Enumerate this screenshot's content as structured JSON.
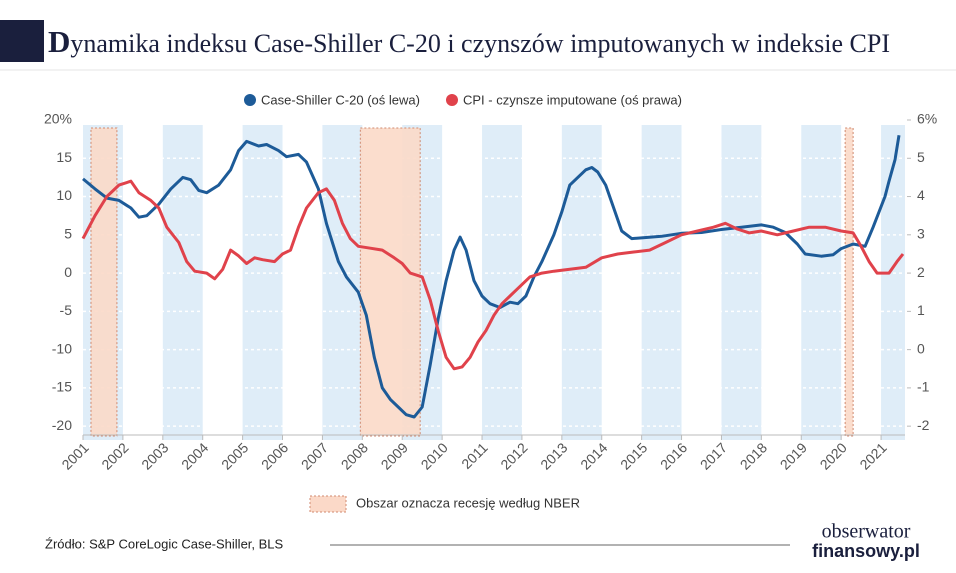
{
  "chart_data": {
    "type": "line",
    "title": "Dynamika indeksu Case-Shiller C-20 i czynszów imputowanych w indeksie CPI",
    "xlim": [
      2001,
      2021.6
    ],
    "xticks": [
      2001,
      2002,
      2003,
      2004,
      2005,
      2006,
      2007,
      2008,
      2009,
      2010,
      2011,
      2012,
      2013,
      2014,
      2015,
      2016,
      2017,
      2018,
      2019,
      2020,
      2021
    ],
    "ylim": [
      -20.5,
      20
    ],
    "yticks": [
      {
        "value": 20,
        "label": "20%"
      },
      15,
      10,
      5,
      0,
      -5,
      -10,
      -15,
      -20
    ],
    "y2lim": [
      -2.1,
      6
    ],
    "y2ticks": [
      {
        "value": 6,
        "label": "6%"
      },
      5,
      4,
      3,
      2,
      1,
      0,
      -1,
      -2
    ],
    "series": [
      {
        "name": "Case-Shiller C-20 (oś lewa)",
        "color": "#1d5b98",
        "axis": "y",
        "x": [
          2001.0,
          2001.3,
          2001.6,
          2001.9,
          2002.2,
          2002.4,
          2002.6,
          2002.9,
          2003.2,
          2003.5,
          2003.7,
          2003.9,
          2004.1,
          2004.4,
          2004.7,
          2004.9,
          2005.1,
          2005.4,
          2005.6,
          2005.9,
          2006.1,
          2006.4,
          2006.6,
          2006.9,
          2007.1,
          2007.4,
          2007.6,
          2007.9,
          2008.1,
          2008.3,
          2008.5,
          2008.7,
          2008.9,
          2009.1,
          2009.3,
          2009.5,
          2009.7,
          2009.9,
          2010.1,
          2010.3,
          2010.45,
          2010.6,
          2010.8,
          2011.0,
          2011.2,
          2011.45,
          2011.7,
          2011.9,
          2012.1,
          2012.3,
          2012.5,
          2012.8,
          2013.0,
          2013.2,
          2013.4,
          2013.6,
          2013.75,
          2013.9,
          2014.1,
          2014.3,
          2014.5,
          2014.75,
          2015.0,
          2015.5,
          2016.0,
          2016.5,
          2017.0,
          2017.5,
          2018.0,
          2018.3,
          2018.6,
          2018.9,
          2019.1,
          2019.5,
          2019.8,
          2020.0,
          2020.3,
          2020.6,
          2020.8,
          2021.1,
          2021.2,
          2021.35,
          2021.45
        ],
        "values": [
          12.3,
          11,
          9.8,
          9.5,
          8.5,
          7.3,
          7.5,
          9,
          11,
          12.5,
          12.2,
          10.8,
          10.5,
          11.5,
          13.5,
          16,
          17.2,
          16.6,
          16.8,
          16,
          15.2,
          15.5,
          14.5,
          11,
          6.5,
          1.5,
          -0.5,
          -2.5,
          -5.5,
          -11,
          -15,
          -16.5,
          -17.5,
          -18.5,
          -18.8,
          -17.5,
          -12,
          -6,
          -1,
          3,
          4.7,
          3,
          -1,
          -3,
          -4,
          -4.5,
          -3.8,
          -4,
          -3,
          -0.5,
          1.5,
          5,
          8,
          11.5,
          12.5,
          13.5,
          13.8,
          13.2,
          11.5,
          8.5,
          5.5,
          4.5,
          4.6,
          4.8,
          5.2,
          5.3,
          5.7,
          6.0,
          6.3,
          6.0,
          5.3,
          3.8,
          2.5,
          2.2,
          2.4,
          3.2,
          3.8,
          3.5,
          6,
          10,
          12,
          14.8,
          18
        ]
      },
      {
        "name": "CPI - czynsze imputowane (oś prawa)",
        "color": "#e0424b",
        "axis": "y2",
        "x": [
          2001.0,
          2001.3,
          2001.6,
          2001.9,
          2002.2,
          2002.4,
          2002.7,
          2002.9,
          2003.1,
          2003.4,
          2003.6,
          2003.8,
          2004.1,
          2004.3,
          2004.5,
          2004.7,
          2004.9,
          2005.1,
          2005.3,
          2005.5,
          2005.8,
          2006.0,
          2006.2,
          2006.4,
          2006.6,
          2006.9,
          2007.1,
          2007.3,
          2007.5,
          2007.7,
          2007.9,
          2008.2,
          2008.5,
          2008.8,
          2009.0,
          2009.2,
          2009.5,
          2009.7,
          2009.9,
          2010.1,
          2010.3,
          2010.5,
          2010.7,
          2010.9,
          2011.1,
          2011.3,
          2011.5,
          2011.7,
          2011.9,
          2012.2,
          2012.5,
          2012.8,
          2013.2,
          2013.6,
          2014.0,
          2014.4,
          2014.8,
          2015.2,
          2015.6,
          2016.0,
          2016.4,
          2016.8,
          2017.1,
          2017.4,
          2017.7,
          2018.0,
          2018.4,
          2018.8,
          2019.2,
          2019.6,
          2020.0,
          2020.3,
          2020.5,
          2020.7,
          2020.9,
          2021.2,
          2021.4,
          2021.55
        ],
        "values": [
          2.9,
          3.5,
          4.0,
          4.3,
          4.4,
          4.1,
          3.9,
          3.7,
          3.2,
          2.8,
          2.3,
          2.05,
          2.0,
          1.85,
          2.1,
          2.6,
          2.45,
          2.25,
          2.4,
          2.35,
          2.3,
          2.5,
          2.6,
          3.2,
          3.7,
          4.1,
          4.2,
          3.9,
          3.3,
          2.9,
          2.7,
          2.65,
          2.6,
          2.4,
          2.25,
          2.0,
          1.9,
          1.3,
          0.5,
          -0.2,
          -0.5,
          -0.45,
          -0.2,
          0.2,
          0.5,
          0.9,
          1.2,
          1.4,
          1.6,
          1.9,
          2.0,
          2.05,
          2.1,
          2.15,
          2.4,
          2.5,
          2.55,
          2.6,
          2.8,
          3.0,
          3.1,
          3.2,
          3.3,
          3.15,
          3.05,
          3.1,
          3.0,
          3.1,
          3.2,
          3.2,
          3.1,
          3.05,
          2.7,
          2.3,
          2.0,
          2.0,
          2.3,
          2.5
        ]
      }
    ],
    "recessions": [
      [
        2001.2,
        2001.85
      ],
      [
        2007.95,
        2009.45
      ],
      [
        2020.1,
        2020.3
      ]
    ],
    "recession_label": "Obszar oznacza recesję według NBER"
  },
  "footer": {
    "source": "Źródło: S&P CoreLogic Case-Shiller, BLS",
    "logo_top": "obserwator",
    "logo_bottom": "finansowy.pl"
  }
}
